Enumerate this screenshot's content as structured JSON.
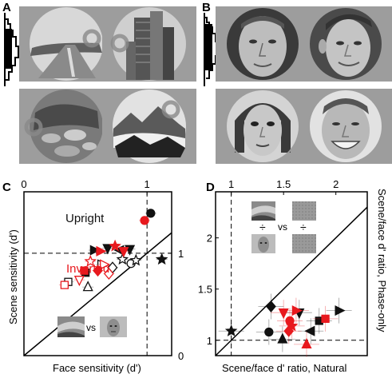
{
  "panels": {
    "a_letter": "A",
    "b_letter": "B",
    "c_letter": "C",
    "d_letter": "D"
  },
  "panel_c": {
    "xlabel": "Face sensitivity (d')",
    "ylabel": "Scene sensitivity (d')",
    "x_ticks": [
      "0",
      "1"
    ],
    "y_ticks": [
      "0",
      "1"
    ],
    "label_upright": "Upright",
    "label_inverted": "Inverted",
    "vs_label": "vs"
  },
  "panel_d": {
    "xlabel": "Scene/face d' ratio, Natural",
    "ylabel": "Scene/face d' ratio, Phase-only",
    "x_ticks": [
      "1",
      "1.5",
      "2"
    ],
    "y_ticks": [
      "1",
      "1.5",
      "2"
    ],
    "vs_label": "vs",
    "div_symbol": "÷"
  },
  "colors": {
    "upright": "#111111",
    "inverted": "#e8191e",
    "inverted_light": "#f5a0a0"
  },
  "chart_data": [
    {
      "type": "scatter",
      "xlabel": "Face sensitivity (d')",
      "ylabel": "Scene sensitivity (d')",
      "xlim": [
        0,
        1.2
      ],
      "ylim": [
        0,
        1.6
      ],
      "reference_lines": [
        "identity diagonal",
        "dashed x=1",
        "dashed y=1"
      ],
      "series": [
        {
          "name": "Upright",
          "color": "#111111",
          "points": [
            {
              "x": 1.03,
              "y": 1.39,
              "m": "circle"
            },
            {
              "x": 0.57,
              "y": 1.03,
              "m": "tri-right"
            },
            {
              "x": 0.68,
              "y": 1.05,
              "m": "tri-down"
            },
            {
              "x": 0.78,
              "y": 1.03,
              "m": "tri-left"
            },
            {
              "x": 0.86,
              "y": 1.04,
              "m": "tri-down"
            },
            {
              "x": 0.8,
              "y": 0.94,
              "m": "star-open"
            },
            {
              "x": 0.87,
              "y": 0.9,
              "m": "circle-open"
            },
            {
              "x": 0.91,
              "y": 0.93,
              "m": "star-open"
            },
            {
              "x": 1.12,
              "y": 0.94,
              "m": "star"
            },
            {
              "x": 0.63,
              "y": 0.89,
              "m": "tri-right-open"
            },
            {
              "x": 0.72,
              "y": 0.86,
              "m": "diamond-open"
            },
            {
              "x": 0.5,
              "y": 0.81,
              "m": "square"
            },
            {
              "x": 0.36,
              "y": 0.72,
              "m": "square-open"
            },
            {
              "x": 0.52,
              "y": 0.67,
              "m": "tri-up-open"
            }
          ]
        },
        {
          "name": "Inverted",
          "color": "#e8191e",
          "points": [
            {
              "x": 0.98,
              "y": 1.32,
              "m": "circle"
            },
            {
              "x": 0.62,
              "y": 1.02,
              "m": "tri-right"
            },
            {
              "x": 0.74,
              "y": 1.07,
              "m": "star"
            },
            {
              "x": 0.81,
              "y": 1.02,
              "m": "tri-down"
            },
            {
              "x": 0.65,
              "y": 0.89,
              "m": "tri-right-open"
            },
            {
              "x": 0.6,
              "y": 0.83,
              "m": "diamond"
            },
            {
              "x": 0.54,
              "y": 0.92,
              "m": "star-open"
            },
            {
              "x": 0.69,
              "y": 0.8,
              "m": "diamond-open"
            },
            {
              "x": 0.45,
              "y": 0.74,
              "m": "tri-down-open"
            },
            {
              "x": 0.49,
              "y": 0.83,
              "m": "square"
            },
            {
              "x": 0.33,
              "y": 0.69,
              "m": "square-open"
            }
          ]
        }
      ]
    },
    {
      "type": "scatter",
      "xlabel": "Scene/face d' ratio, Natural",
      "ylabel": "Scene/face d' ratio, Phase-only",
      "xlim": [
        0.85,
        2.3
      ],
      "ylim": [
        0.85,
        2.45
      ],
      "reference_lines": [
        "identity diagonal",
        "dashed x=1",
        "dashed y=1"
      ],
      "series": [
        {
          "name": "Upright",
          "color": "#111111",
          "points": [
            {
              "x": 1.0,
              "y": 1.09,
              "m": "star"
            },
            {
              "x": 1.38,
              "y": 1.33,
              "m": "diamond"
            },
            {
              "x": 1.36,
              "y": 1.08,
              "m": "circle"
            },
            {
              "x": 1.65,
              "y": 1.27,
              "m": "tri-down"
            },
            {
              "x": 1.84,
              "y": 1.19,
              "m": "square"
            },
            {
              "x": 2.03,
              "y": 1.29,
              "m": "tri-right"
            },
            {
              "x": 1.76,
              "y": 1.09,
              "m": "tri-left"
            },
            {
              "x": 1.49,
              "y": 1.01,
              "m": "tri-up"
            }
          ]
        },
        {
          "name": "Inverted",
          "color": "#e8191e",
          "points": [
            {
              "x": 1.5,
              "y": 1.27,
              "m": "tri-down"
            },
            {
              "x": 1.62,
              "y": 1.29,
              "m": "tri-right"
            },
            {
              "x": 1.9,
              "y": 1.21,
              "m": "square"
            },
            {
              "x": 1.56,
              "y": 1.19,
              "m": "circle"
            },
            {
              "x": 1.58,
              "y": 1.14,
              "m": "star"
            },
            {
              "x": 1.55,
              "y": 1.09,
              "m": "diamond"
            },
            {
              "x": 1.72,
              "y": 0.96,
              "m": "tri-up"
            }
          ]
        }
      ]
    }
  ]
}
